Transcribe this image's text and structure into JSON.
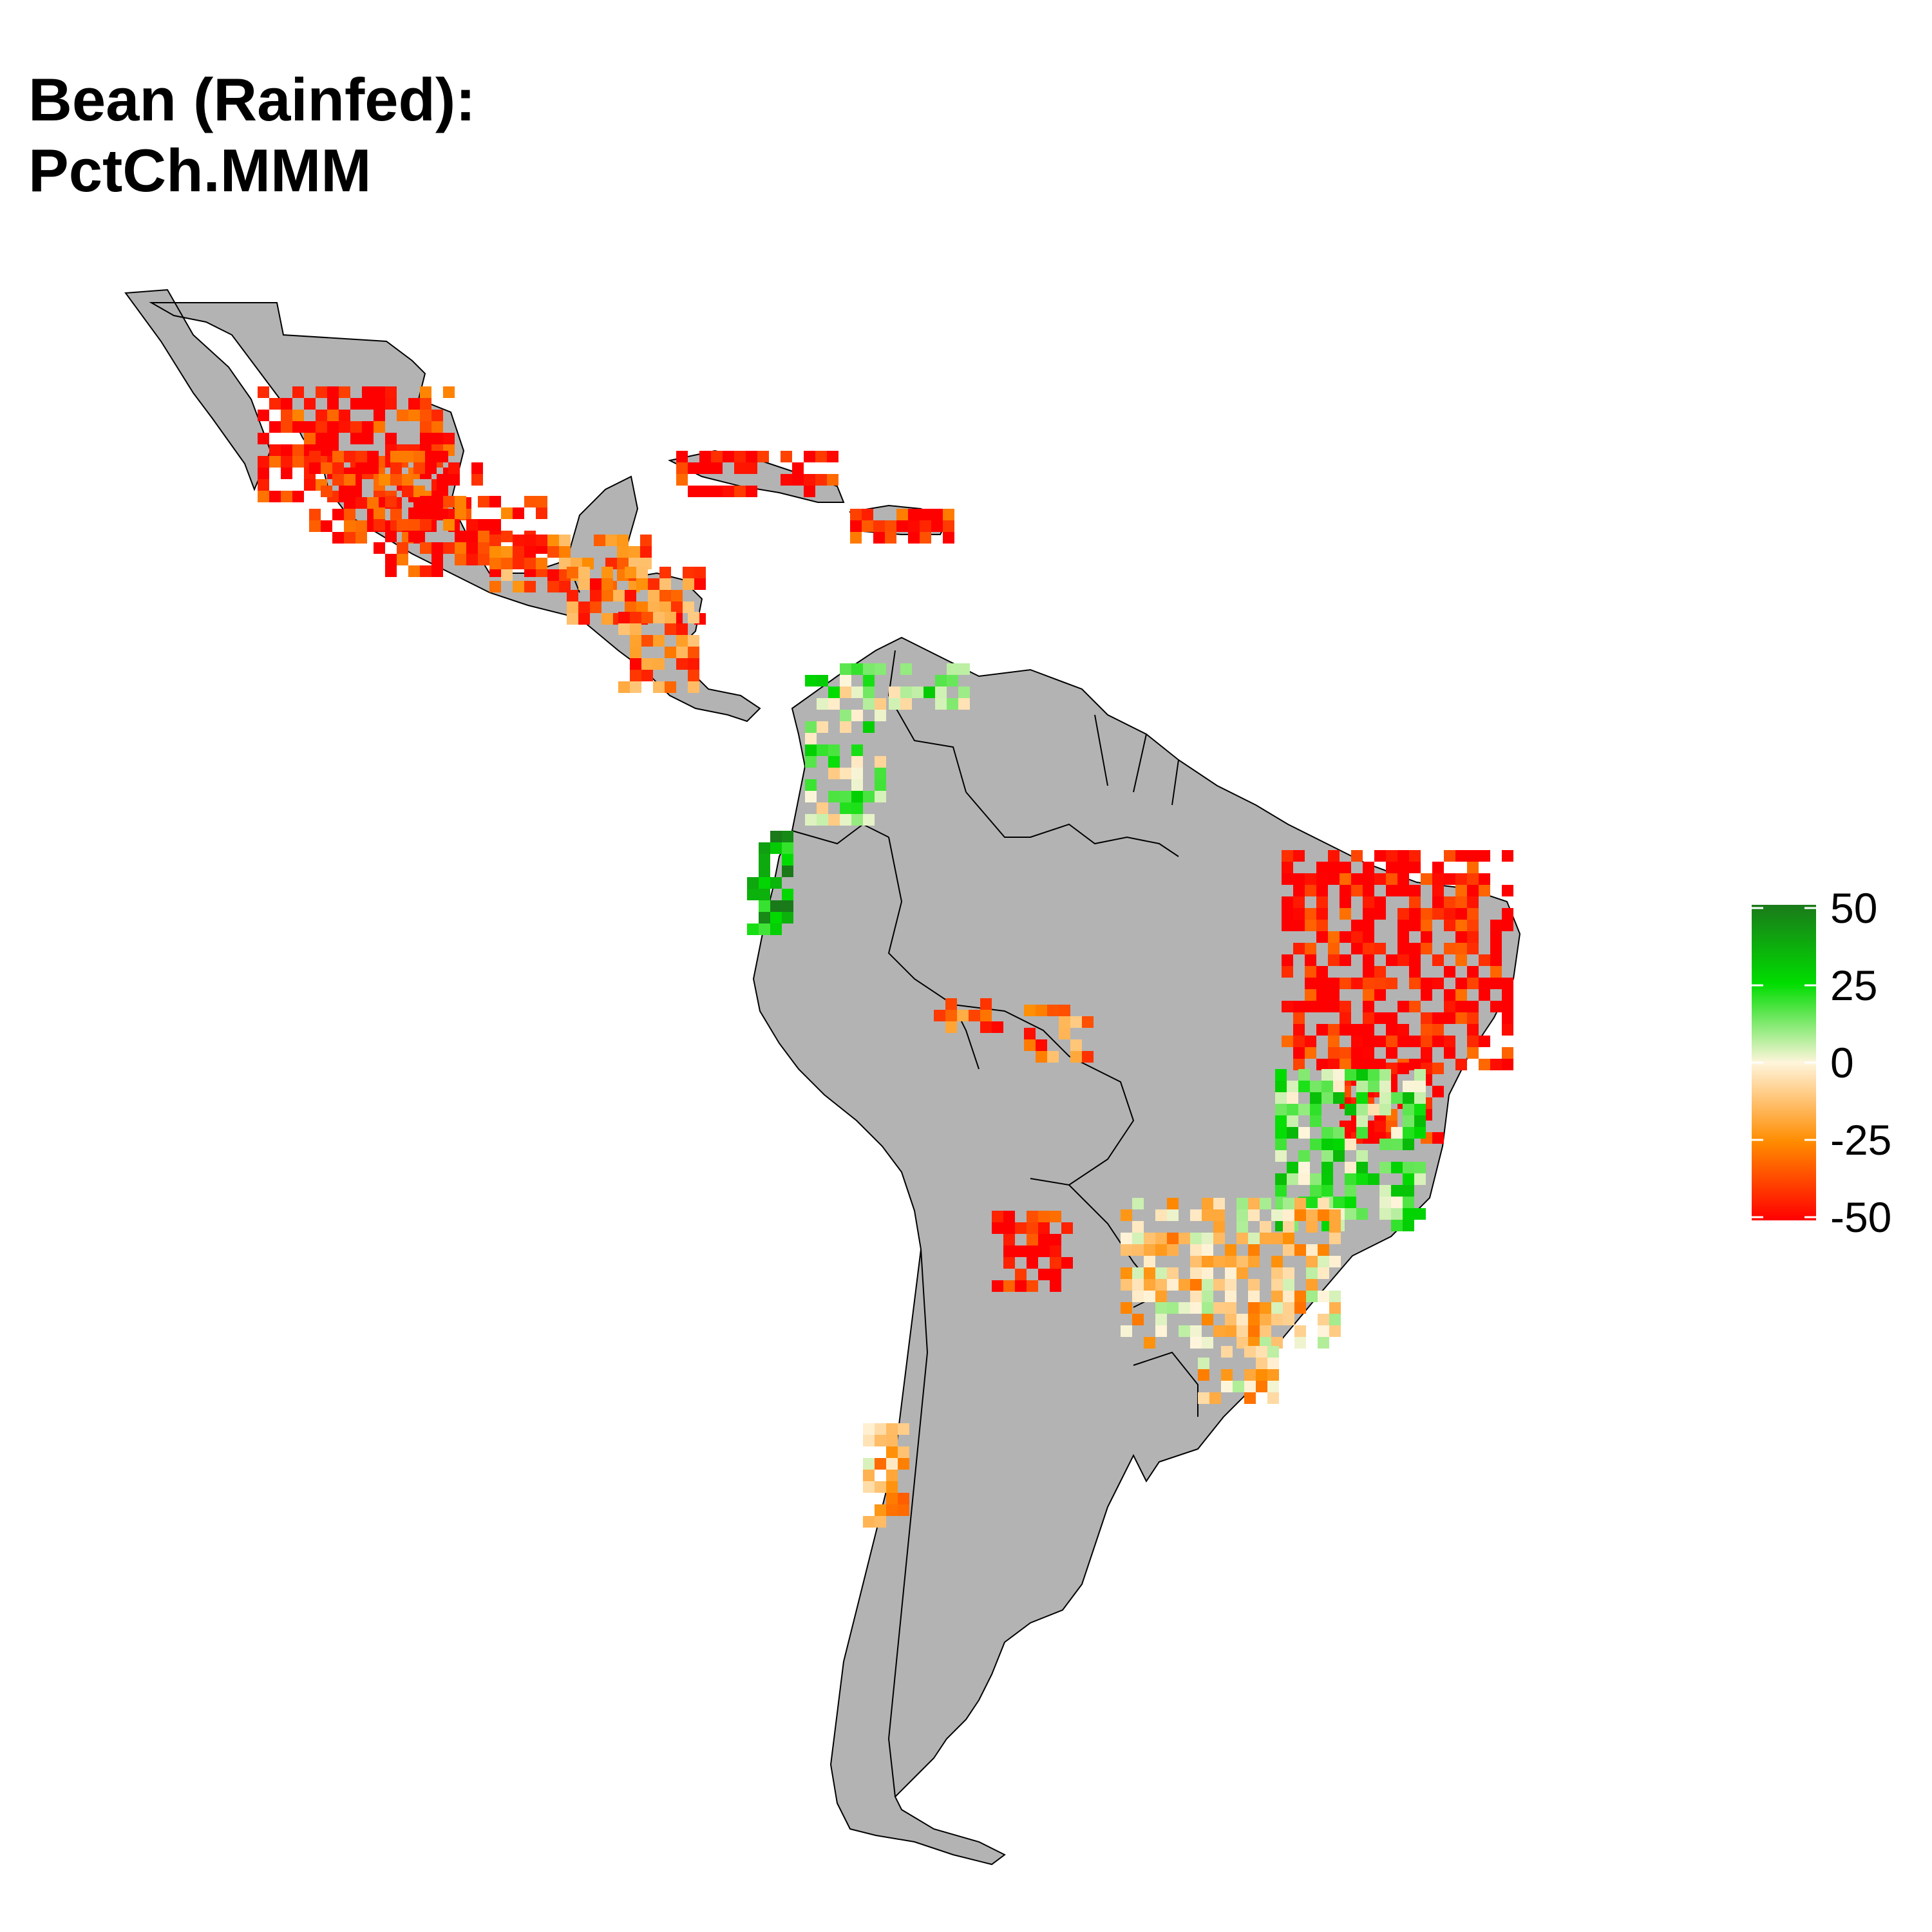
{
  "title": {
    "line1": "Bean (Rainfed):",
    "line2": "PctCh.MMM"
  },
  "map": {
    "land_color": "#B3B3B3",
    "border_color": "#000000",
    "background_color": "#FFFFFF",
    "regions": [
      "Mexico",
      "Central America",
      "Caribbean",
      "South America"
    ]
  },
  "legend": {
    "min": -50,
    "max": 50,
    "ticks": [
      {
        "value": 50,
        "label": "50"
      },
      {
        "value": 25,
        "label": "25"
      },
      {
        "value": 0,
        "label": "0"
      },
      {
        "value": -25,
        "label": "-25"
      },
      {
        "value": -50,
        "label": "-50"
      }
    ],
    "colors": {
      "-50": "#FF0000",
      "-25": "#FF8C00",
      "0": "#FFF5DC",
      "25": "#00DD00",
      "50": "#1A7A1A"
    }
  },
  "hotspots": [
    {
      "region": "Mexico",
      "value": -45
    },
    {
      "region": "Central America",
      "value": -30
    },
    {
      "region": "Cuba",
      "value": -50
    },
    {
      "region": "Hispaniola",
      "value": -45
    },
    {
      "region": "Colombia Andes",
      "value": 10
    },
    {
      "region": "Ecuador",
      "value": 35
    },
    {
      "region": "Northeast Brazil",
      "value": -50
    },
    {
      "region": "Central-East Brazil",
      "value": 15
    },
    {
      "region": "South Brazil",
      "value": -10
    },
    {
      "region": "Bolivia",
      "value": -30
    },
    {
      "region": "Northern Argentina",
      "value": -50
    },
    {
      "region": "Chile",
      "value": -15
    }
  ]
}
